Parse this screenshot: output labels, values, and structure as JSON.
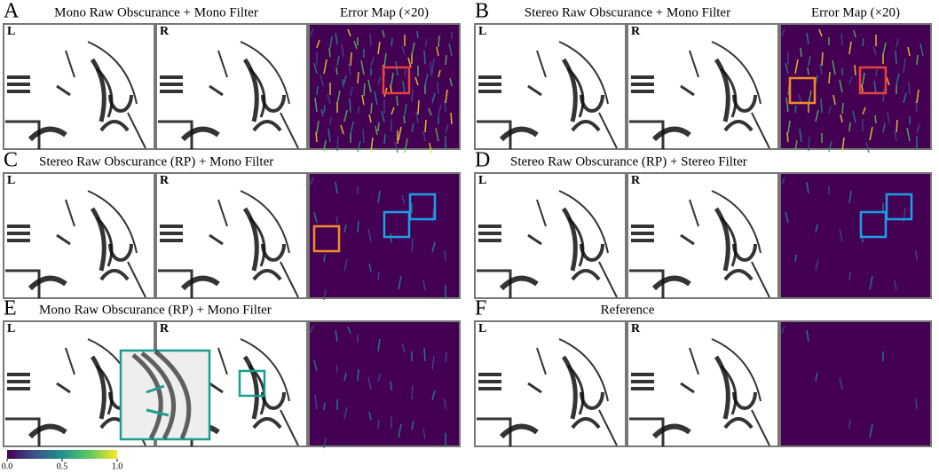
{
  "panels": [
    {
      "letter": "A",
      "title": "Mono Raw Obscurance + Mono Filter",
      "error_title": "Error Map (×20)",
      "left_label": "L",
      "right_label": "R"
    },
    {
      "letter": "B",
      "title": "Stereo Raw Obscurance + Mono Filter",
      "error_title": "Error Map (×20)",
      "left_label": "L",
      "right_label": "R"
    },
    {
      "letter": "C",
      "title": "Stereo Raw Obscurance (RP) + Mono Filter",
      "left_label": "L",
      "right_label": "R"
    },
    {
      "letter": "D",
      "title": "Stereo Raw Obscurance (RP) + Stereo Filter",
      "left_label": "L",
      "right_label": "R"
    },
    {
      "letter": "E",
      "title": "Mono Raw Obscurance (RP) + Mono Filter",
      "left_label": "L",
      "right_label": "R"
    },
    {
      "letter": "F",
      "title": "Reference",
      "left_label": "L",
      "right_label": "R"
    }
  ],
  "colorbar": {
    "ticks": [
      {
        "value": 0,
        "label": "0.0"
      },
      0.5,
      {
        "value": 1,
        "label": "1.0"
      }
    ]
  }
}
